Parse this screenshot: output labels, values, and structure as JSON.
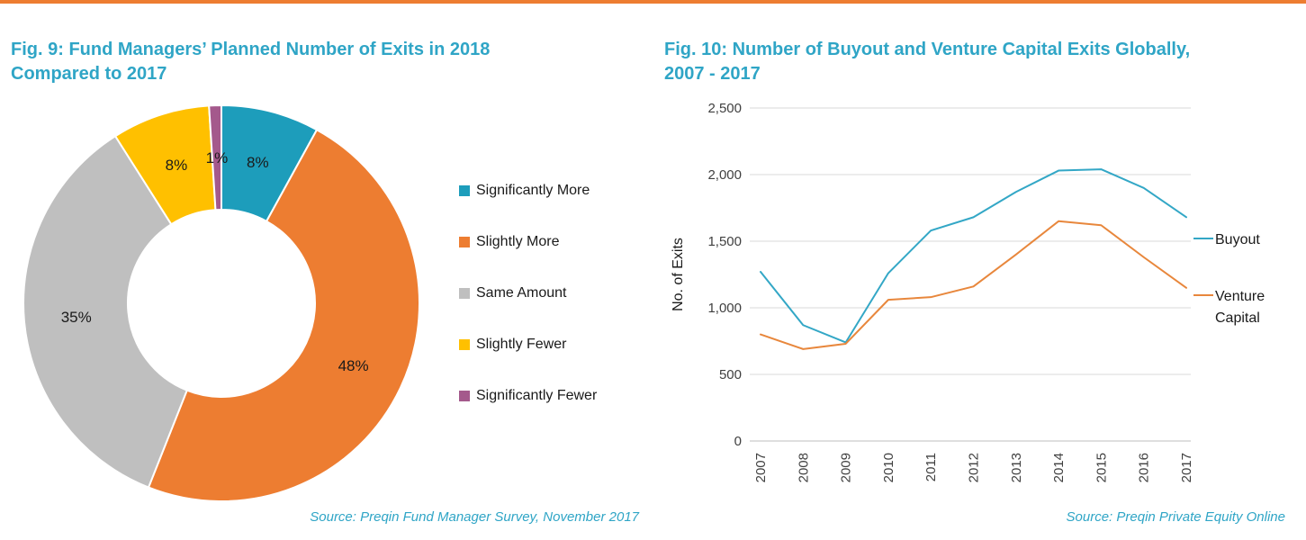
{
  "page": {
    "accent_rule_color": "#ED7D31",
    "title_color": "#2FA5C6",
    "source_color": "#2FA5C6"
  },
  "chart_data": [
    {
      "type": "pie",
      "donut": true,
      "title": "Fig. 9: Fund Managers’ Planned Number of Exits in 2018 Compared to 2017",
      "title_lines": [
        "Fig. 9: Fund Managers’ Planned Number of Exits in 2018",
        "Compared to 2017"
      ],
      "labels": [
        "Significantly More",
        "Slightly More",
        "Same Amount",
        "Slightly Fewer",
        "Significantly Fewer"
      ],
      "values": [
        8,
        48,
        35,
        8,
        1
      ],
      "value_labels": [
        "8%",
        "48%",
        "35%",
        "8%",
        "1%"
      ],
      "colors": [
        "#1D9DBB",
        "#ED7D31",
        "#BFBFBF",
        "#FFC000",
        "#A4598C"
      ],
      "legend_position": "right",
      "source": "Source: Preqin Fund Manager Survey, November 2017"
    },
    {
      "type": "line",
      "title": "Fig. 10: Number of Buyout and Venture Capital Exits Globally, 2007 - 2017",
      "title_lines": [
        "Fig. 10: Number of Buyout and Venture Capital Exits Globally,",
        "2007 - 2017"
      ],
      "x": [
        "2007",
        "2008",
        "2009",
        "2010",
        "2011",
        "2012",
        "2013",
        "2014",
        "2015",
        "2016",
        "2017"
      ],
      "series": [
        {
          "name": "Buyout",
          "color": "#33A7C6",
          "values": [
            1270,
            870,
            740,
            1260,
            1580,
            1680,
            1870,
            2030,
            2040,
            1900,
            1680
          ]
        },
        {
          "name": "Venture Capital",
          "color": "#E8873C",
          "values": [
            800,
            690,
            730,
            1060,
            1080,
            1160,
            1400,
            1650,
            1620,
            1380,
            1150
          ]
        }
      ],
      "ylabel": "No. of Exits",
      "ylim": [
        0,
        2500
      ],
      "ytick_step": 500,
      "yticks": [
        "0",
        "500",
        "1,000",
        "1,500",
        "2,000",
        "2,500"
      ],
      "grid": true,
      "legend_position": "right",
      "source": "Source: Preqin Private Equity Online"
    }
  ]
}
